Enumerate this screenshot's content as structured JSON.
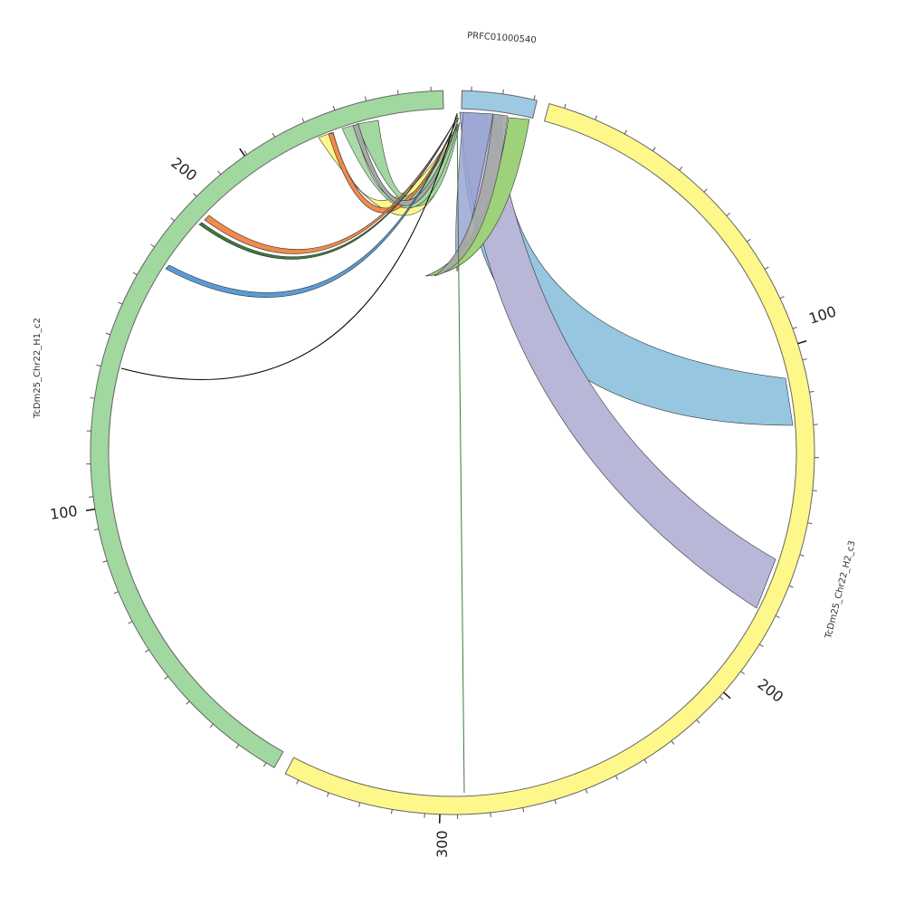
{
  "diagram": {
    "segments": {
      "top": {
        "name": "PRFC01000540",
        "color": "#9ec9e2"
      },
      "right": {
        "name": "TcDm25_Chr22_H2_c3",
        "color": "#fef78a"
      },
      "left": {
        "name": "TcDm25_Chr22_H1_c2",
        "color": "#a0d8a0"
      }
    },
    "tick_labels": {
      "right_100": "100",
      "right_200": "200",
      "right_300": "300",
      "left_100": "100",
      "left_200": "200"
    },
    "ribbon_colors": {
      "blue": "#96c6e0",
      "purple": "#b9b7d8",
      "periwinkle": "#9aa6d4",
      "green": "#9dd17a",
      "gray": "#a7a9a6",
      "yellow": "#fef78a",
      "leafgreen": "#a2d7a0",
      "orange": "#f08a4b",
      "steel": "#5b9bd5",
      "darkgreen": "#3d7a3d",
      "black": "#000000"
    }
  }
}
